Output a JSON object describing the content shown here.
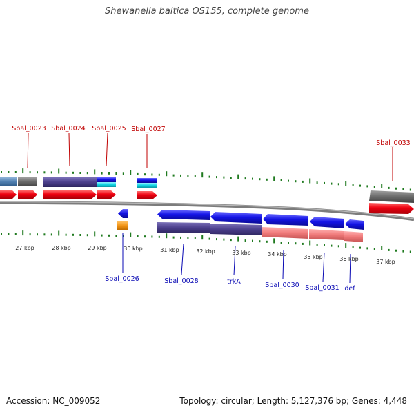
{
  "title": "Shewanella baltica OS155, complete genome",
  "footer": {
    "accession": "Accession: NC_009052",
    "topology": "Topology: circular; Length: 5,127,376 bp; Genes: 4,448"
  },
  "colors": {
    "tick": "#1f7a1f",
    "backbone": "#808080",
    "cds_red": "#e8000f",
    "cds_blue": "#1010e0",
    "gene_purple": "#4b3f8c",
    "gene_grey": "#6a6a6a",
    "gene_steel": "#4f7fb0",
    "gene_cyan": "#11d4e4",
    "gene_salmon": "#f07a7a",
    "gene_orange": "#f09010",
    "label_top": "#c00000",
    "label_bottom": "#0a0ab4"
  },
  "scale_labels": [
    "27 kbp",
    "28 kbp",
    "29 kbp",
    "30 kbp",
    "31 kbp",
    "32 kbp",
    "33 kbp",
    "34 kbp",
    "35 kbp",
    "36 kbp",
    "37 kbp"
  ],
  "top_labels": [
    "Sbal_0023",
    "Sbal_0024",
    "Sbal_0025",
    "Sbal_0027",
    "Sbal_0033"
  ],
  "bottom_labels": [
    "Sbal_0026",
    "Sbal_0028",
    "trkA",
    "Sbal_0030",
    "Sbal_0031",
    "def"
  ]
}
